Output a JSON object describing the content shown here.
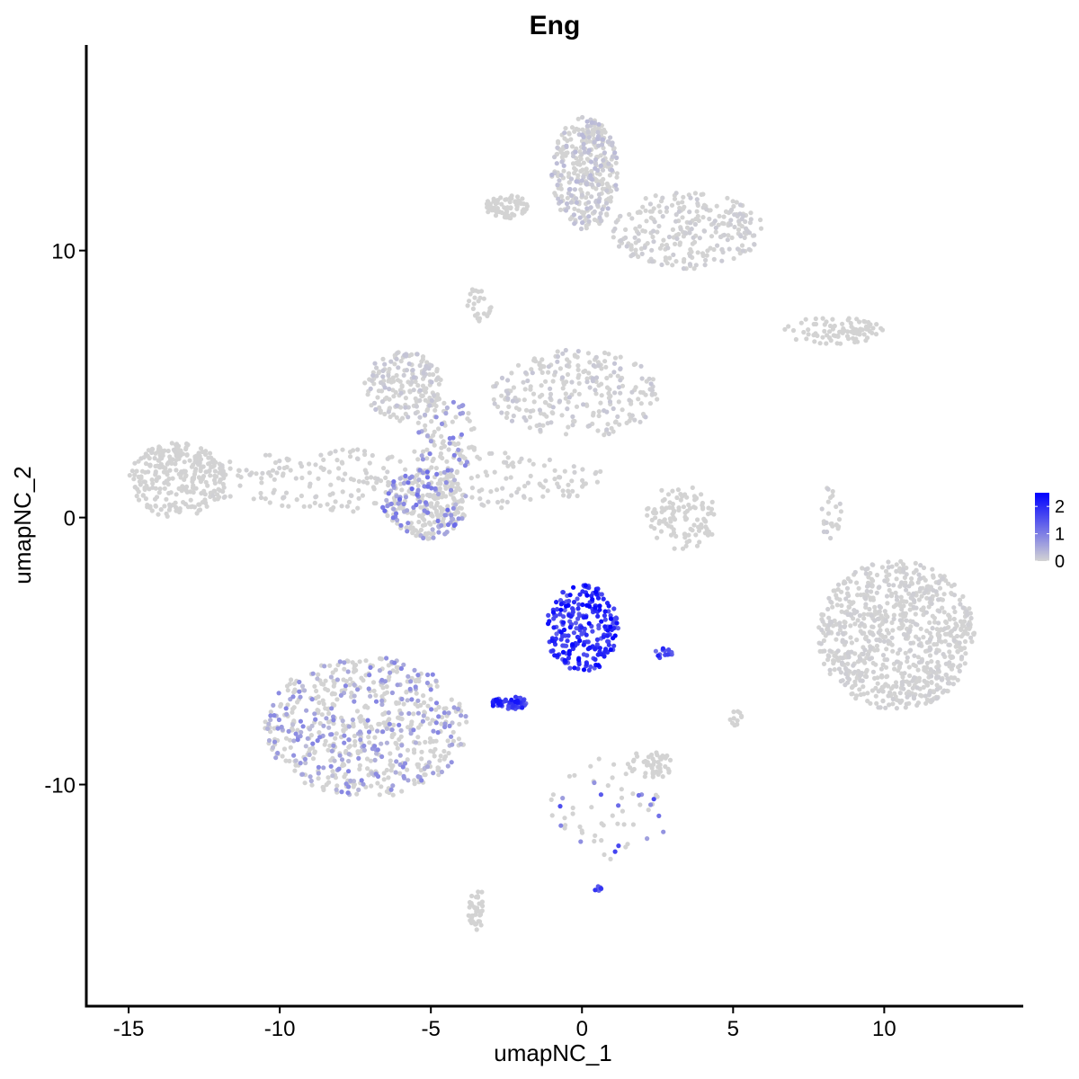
{
  "chart_data": {
    "type": "scatter",
    "title": "Eng",
    "xlabel": "umapNC_1",
    "ylabel": "umapNC_2",
    "xlim": [
      -16.4,
      14.6
    ],
    "ylim": [
      -18.3,
      17.7
    ],
    "xticks": [
      -15,
      -10,
      -5,
      0,
      5,
      10
    ],
    "xtick_labels": [
      "-15",
      "-10",
      "-5",
      "0",
      "5",
      "10"
    ],
    "yticks": [
      10,
      0,
      -10
    ],
    "ytick_labels": [
      "10",
      "0",
      "-10"
    ],
    "grid": false,
    "color_scale": {
      "low": "#d3d3d3",
      "high": "#0000ff",
      "min": 0,
      "max": 2.5,
      "ticks": [
        2,
        1,
        0
      ],
      "tick_labels": [
        "2",
        "1",
        "0"
      ],
      "position": "right"
    },
    "clusters": [
      {
        "x": [
          -13.2,
          0.9
        ],
        "y": [
          0.2,
          2.6
        ],
        "n": 300,
        "expr": 0.02
      },
      {
        "x": [
          -7.2,
          -4.6
        ],
        "y": [
          3.6,
          6.2
        ],
        "n": 180,
        "expr": 0.1
      },
      {
        "x": [
          -6.6,
          -3.8
        ],
        "y": [
          -0.8,
          1.8
        ],
        "n": 250,
        "expr": 0.6
      },
      {
        "x": [
          -5.5,
          -3.5
        ],
        "y": [
          1.5,
          4.5
        ],
        "n": 90,
        "expr": 0.5
      },
      {
        "x": [
          -3.0,
          2.6
        ],
        "y": [
          3.0,
          6.3
        ],
        "n": 260,
        "expr": 0.08
      },
      {
        "x": [
          -1.0,
          1.2
        ],
        "y": [
          10.8,
          15.0
        ],
        "n": 350,
        "expr": 0.15
      },
      {
        "x": [
          -3.2,
          -1.8
        ],
        "y": [
          11.2,
          12.1
        ],
        "n": 70,
        "expr": 0.0
      },
      {
        "x": [
          1.0,
          6.0
        ],
        "y": [
          9.3,
          12.2
        ],
        "n": 260,
        "expr": 0.05
      },
      {
        "x": [
          -3.8,
          -3.0
        ],
        "y": [
          7.2,
          8.8
        ],
        "n": 25,
        "expr": 0.0
      },
      {
        "x": [
          6.6,
          10.0
        ],
        "y": [
          6.5,
          7.5
        ],
        "n": 90,
        "expr": 0.0
      },
      {
        "x": [
          -15.0,
          -11.8
        ],
        "y": [
          0.0,
          2.8
        ],
        "n": 280,
        "expr": 0.01
      },
      {
        "x": [
          2.0,
          4.5
        ],
        "y": [
          -1.2,
          1.2
        ],
        "n": 110,
        "expr": 0.0
      },
      {
        "x": [
          7.8,
          8.6
        ],
        "y": [
          -0.8,
          1.2
        ],
        "n": 25,
        "expr": 0.05
      },
      {
        "x": [
          7.8,
          13.0
        ],
        "y": [
          -7.2,
          -1.6
        ],
        "n": 800,
        "expr": 0.03
      },
      {
        "x": [
          -1.2,
          1.2
        ],
        "y": [
          -5.8,
          -2.5
        ],
        "n": 240,
        "expr": 2.2
      },
      {
        "x": [
          -3.0,
          -1.8
        ],
        "y": [
          -7.2,
          -6.7
        ],
        "n": 50,
        "expr": 2.0
      },
      {
        "x": [
          2.4,
          3.0
        ],
        "y": [
          -5.3,
          -4.9
        ],
        "n": 15,
        "expr": 1.9
      },
      {
        "x": [
          -10.5,
          -3.8
        ],
        "y": [
          -10.5,
          -5.2
        ],
        "n": 650,
        "expr": 0.45
      },
      {
        "x": [
          1.5,
          3.0
        ],
        "y": [
          -9.8,
          -8.7
        ],
        "n": 50,
        "expr": 0.0
      },
      {
        "x": [
          -3.8,
          -3.2
        ],
        "y": [
          -15.5,
          -13.8
        ],
        "n": 40,
        "expr": 0.0
      },
      {
        "x": [
          -1.2,
          3.0
        ],
        "y": [
          -12.8,
          -9.0
        ],
        "n": 60,
        "expr": 0.9
      },
      {
        "x": [
          0.4,
          0.7
        ],
        "y": [
          -14.0,
          -13.8
        ],
        "n": 8,
        "expr": 1.7
      },
      {
        "x": [
          4.9,
          5.3
        ],
        "y": [
          -7.8,
          -7.2
        ],
        "n": 12,
        "expr": 0.0
      }
    ]
  }
}
